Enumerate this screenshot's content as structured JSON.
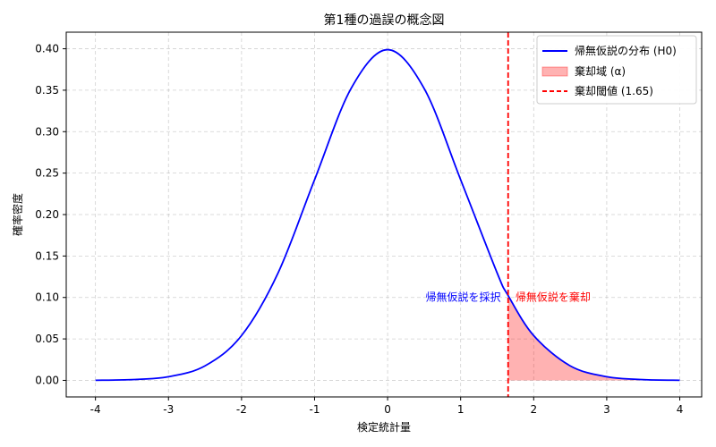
{
  "chart_data": {
    "type": "line",
    "title": "第1種の過誤の概念図",
    "xlabel": "検定統計量",
    "ylabel": "確率密度",
    "xlim": [
      -4.4,
      4.3
    ],
    "ylim": [
      -0.02,
      0.42
    ],
    "xticks": [
      -4,
      -3,
      -2,
      -1,
      0,
      1,
      2,
      3,
      4
    ],
    "xtick_labels": [
      "-4",
      "-3",
      "-2",
      "-1",
      "0",
      "1",
      "2",
      "3",
      "4"
    ],
    "yticks": [
      0.0,
      0.05,
      0.1,
      0.15,
      0.2,
      0.25,
      0.3,
      0.35,
      0.4
    ],
    "ytick_labels": [
      "0.00",
      "0.05",
      "0.10",
      "0.15",
      "0.20",
      "0.25",
      "0.30",
      "0.35",
      "0.40"
    ],
    "grid": true,
    "legend_position": "top-right",
    "series": [
      {
        "name": "帰無仮説の分布 (H0)",
        "color": "#0000ff",
        "x": [
          -4.0,
          -3.5,
          -3.0,
          -2.5,
          -2.0,
          -1.5,
          -1.0,
          -0.5,
          0.0,
          0.5,
          1.0,
          1.5,
          1.65,
          2.0,
          2.5,
          3.0,
          3.5,
          4.0
        ],
        "y": [
          0.0001,
          0.0009,
          0.0044,
          0.0175,
          0.054,
          0.1295,
          0.242,
          0.3521,
          0.3989,
          0.3521,
          0.242,
          0.1295,
          0.1023,
          0.054,
          0.0175,
          0.0044,
          0.0009,
          0.0001
        ]
      }
    ],
    "rejection_region": {
      "name": "棄却域 (α)",
      "color": "#ff0000",
      "x_from": 1.65,
      "x_to": 4.0
    },
    "threshold": {
      "name": "棄却閾値 (1.65)",
      "x": 1.65,
      "color": "#ff0000"
    },
    "annotations": [
      {
        "text": "帰無仮説を採択",
        "x": 1.55,
        "y": 0.1,
        "align": "right",
        "color": "#0000ff"
      },
      {
        "text": "帰無仮説を棄却",
        "x": 1.75,
        "y": 0.1,
        "align": "left",
        "color": "#ff0000"
      }
    ]
  }
}
